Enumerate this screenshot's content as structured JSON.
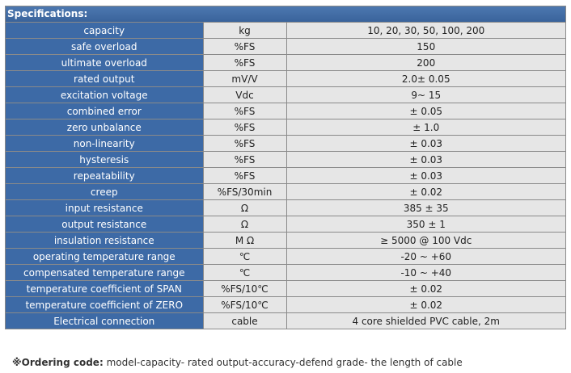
{
  "spec": {
    "title": "Specifications:",
    "rows": [
      {
        "param": "capacity",
        "unit": "kg",
        "value": "10, 20, 30, 50, 100, 200"
      },
      {
        "param": "safe overload",
        "unit": "%FS",
        "value": "150"
      },
      {
        "param": "ultimate overload",
        "unit": "%FS",
        "value": "200"
      },
      {
        "param": "rated output",
        "unit": "mV/V",
        "value": "2.0± 0.05"
      },
      {
        "param": "excitation voltage",
        "unit": "Vdc",
        "value": "9~ 15"
      },
      {
        "param": "combined error",
        "unit": "%FS",
        "value": "± 0.05"
      },
      {
        "param": "zero unbalance",
        "unit": "%FS",
        "value": "± 1.0"
      },
      {
        "param": "non-linearity",
        "unit": "%FS",
        "value": "± 0.03"
      },
      {
        "param": "hysteresis",
        "unit": "%FS",
        "value": "± 0.03"
      },
      {
        "param": "repeatability",
        "unit": "%FS",
        "value": "± 0.03"
      },
      {
        "param": "creep",
        "unit": "%FS/30min",
        "value": "± 0.02"
      },
      {
        "param": "input resistance",
        "unit": "Ω",
        "value": "385 ± 35"
      },
      {
        "param": "output resistance",
        "unit": "Ω",
        "value": "350 ± 1"
      },
      {
        "param": "insulation resistance",
        "unit": "M Ω",
        "value": "≥ 5000 @ 100 Vdc"
      },
      {
        "param": "operating temperature range",
        "unit": "℃",
        "value": "-20 ~ +60"
      },
      {
        "param": "compensated temperature range",
        "unit": "℃",
        "value": "-10 ~ +40"
      },
      {
        "param": "temperature coefficient of SPAN",
        "unit": "%FS/10℃",
        "value": "± 0.02"
      },
      {
        "param": "temperature coefficient of ZERO",
        "unit": "%FS/10℃",
        "value": "± 0.02"
      },
      {
        "param": "Electrical connection",
        "unit": "cable",
        "value": "4 core shielded PVC cable,  2m"
      }
    ]
  },
  "ordering": {
    "label": "※Ordering code:",
    "text": " model-capacity- rated output-accuracy-defend grade- the length of cable"
  },
  "colors": {
    "param_bg": "#3d6aa6",
    "header_bg": "#4670a8",
    "cell_bg": "#e6e6e6"
  }
}
